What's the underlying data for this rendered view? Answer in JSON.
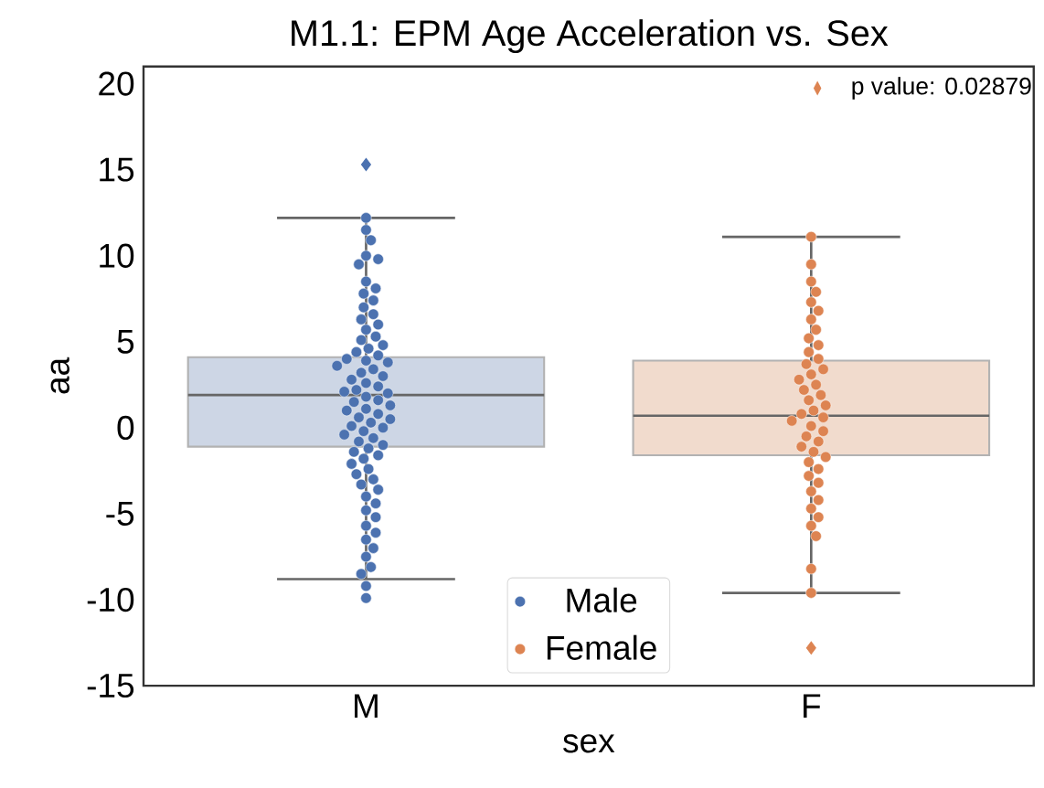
{
  "chart_data": {
    "type": "box",
    "title": "M1.1: EPM Age Acceleration vs. Sex",
    "xlabel": "sex",
    "ylabel": "aa",
    "categories": [
      "M",
      "F"
    ],
    "colors": [
      "#cdd6e5",
      "#f1dbcd"
    ],
    "boxes": [
      {
        "low": -8.8,
        "q1": -1.1,
        "median": 1.9,
        "q3": 4.1,
        "high": 12.2,
        "outliers": [
          15.3
        ]
      },
      {
        "low": -9.6,
        "q1": -1.6,
        "median": 0.7,
        "q3": 3.9,
        "high": 11.1,
        "outliers": [
          -12.8
        ]
      }
    ],
    "series": [
      {
        "type": "scatter",
        "name": "Male",
        "color": "#4c72b0",
        "x": [
          "M",
          "M",
          "M",
          "M",
          "M",
          "M",
          "M",
          "M",
          "M",
          "M",
          "M",
          "M",
          "M",
          "M",
          "M",
          "M",
          "M",
          "M",
          "M",
          "M",
          "M",
          "M",
          "M",
          "M",
          "M",
          "M",
          "M",
          "M",
          "M",
          "M",
          "M",
          "M",
          "M",
          "M",
          "M",
          "M",
          "M",
          "M",
          "M",
          "M",
          "M",
          "M",
          "M",
          "M",
          "M",
          "M",
          "M",
          "M",
          "M",
          "M",
          "M",
          "M",
          "M",
          "M",
          "M",
          "M",
          "M",
          "M",
          "M",
          "M",
          "M",
          "M",
          "M",
          "M",
          "M",
          "M",
          "M",
          "M",
          "M",
          "M",
          "M",
          "M",
          "M",
          "M"
        ],
        "values": [
          12.2,
          11.5,
          10.9,
          10.0,
          9.8,
          9.5,
          8.5,
          8.1,
          7.8,
          7.4,
          7.0,
          6.6,
          6.3,
          6.0,
          5.7,
          5.3,
          5.1,
          4.8,
          4.6,
          4.4,
          4.2,
          4.0,
          3.9,
          3.8,
          3.6,
          3.4,
          3.2,
          3.0,
          2.8,
          2.6,
          2.4,
          2.2,
          2.1,
          2.0,
          1.8,
          1.6,
          1.5,
          1.3,
          1.1,
          1.0,
          0.8,
          0.6,
          0.5,
          0.3,
          0.1,
          0.0,
          -0.2,
          -0.4,
          -0.6,
          -0.8,
          -1.0,
          -1.2,
          -1.4,
          -1.6,
          -1.8,
          -2.1,
          -2.4,
          -2.7,
          -3.0,
          -3.3,
          -3.6,
          -4.0,
          -4.4,
          -4.8,
          -5.2,
          -5.7,
          -6.1,
          -6.5,
          -7.0,
          -7.5,
          -8.1,
          -8.5,
          -9.2,
          -9.9
        ]
      },
      {
        "type": "scatter",
        "name": "Female",
        "color": "#dd8452",
        "x": [
          "F",
          "F",
          "F",
          "F",
          "F",
          "F",
          "F",
          "F",
          "F",
          "F",
          "F",
          "F",
          "F",
          "F",
          "F",
          "F",
          "F",
          "F",
          "F",
          "F",
          "F",
          "F",
          "F",
          "F",
          "F",
          "F",
          "F",
          "F",
          "F",
          "F",
          "F",
          "F",
          "F",
          "F",
          "F",
          "F",
          "F",
          "F",
          "F",
          "F",
          "F",
          "F",
          "F",
          "F"
        ],
        "values": [
          11.1,
          9.5,
          8.5,
          7.9,
          7.3,
          6.8,
          6.3,
          5.7,
          5.2,
          4.8,
          4.4,
          4.0,
          3.7,
          3.4,
          3.1,
          2.8,
          2.5,
          2.2,
          1.9,
          1.6,
          1.3,
          1.0,
          0.8,
          0.6,
          0.4,
          0.1,
          -0.2,
          -0.5,
          -0.8,
          -1.1,
          -1.4,
          -1.7,
          -2.0,
          -2.4,
          -2.8,
          -3.2,
          -3.7,
          -4.2,
          -4.7,
          -5.2,
          -5.7,
          -6.3,
          -8.2,
          -9.6
        ]
      }
    ],
    "ylim": [
      -15,
      21
    ],
    "yticks": [
      -15,
      -10,
      -5,
      0,
      5,
      10,
      15,
      20
    ],
    "grid": false,
    "legend": "bottom",
    "annotations": [
      "p value: 0.02879"
    ]
  }
}
